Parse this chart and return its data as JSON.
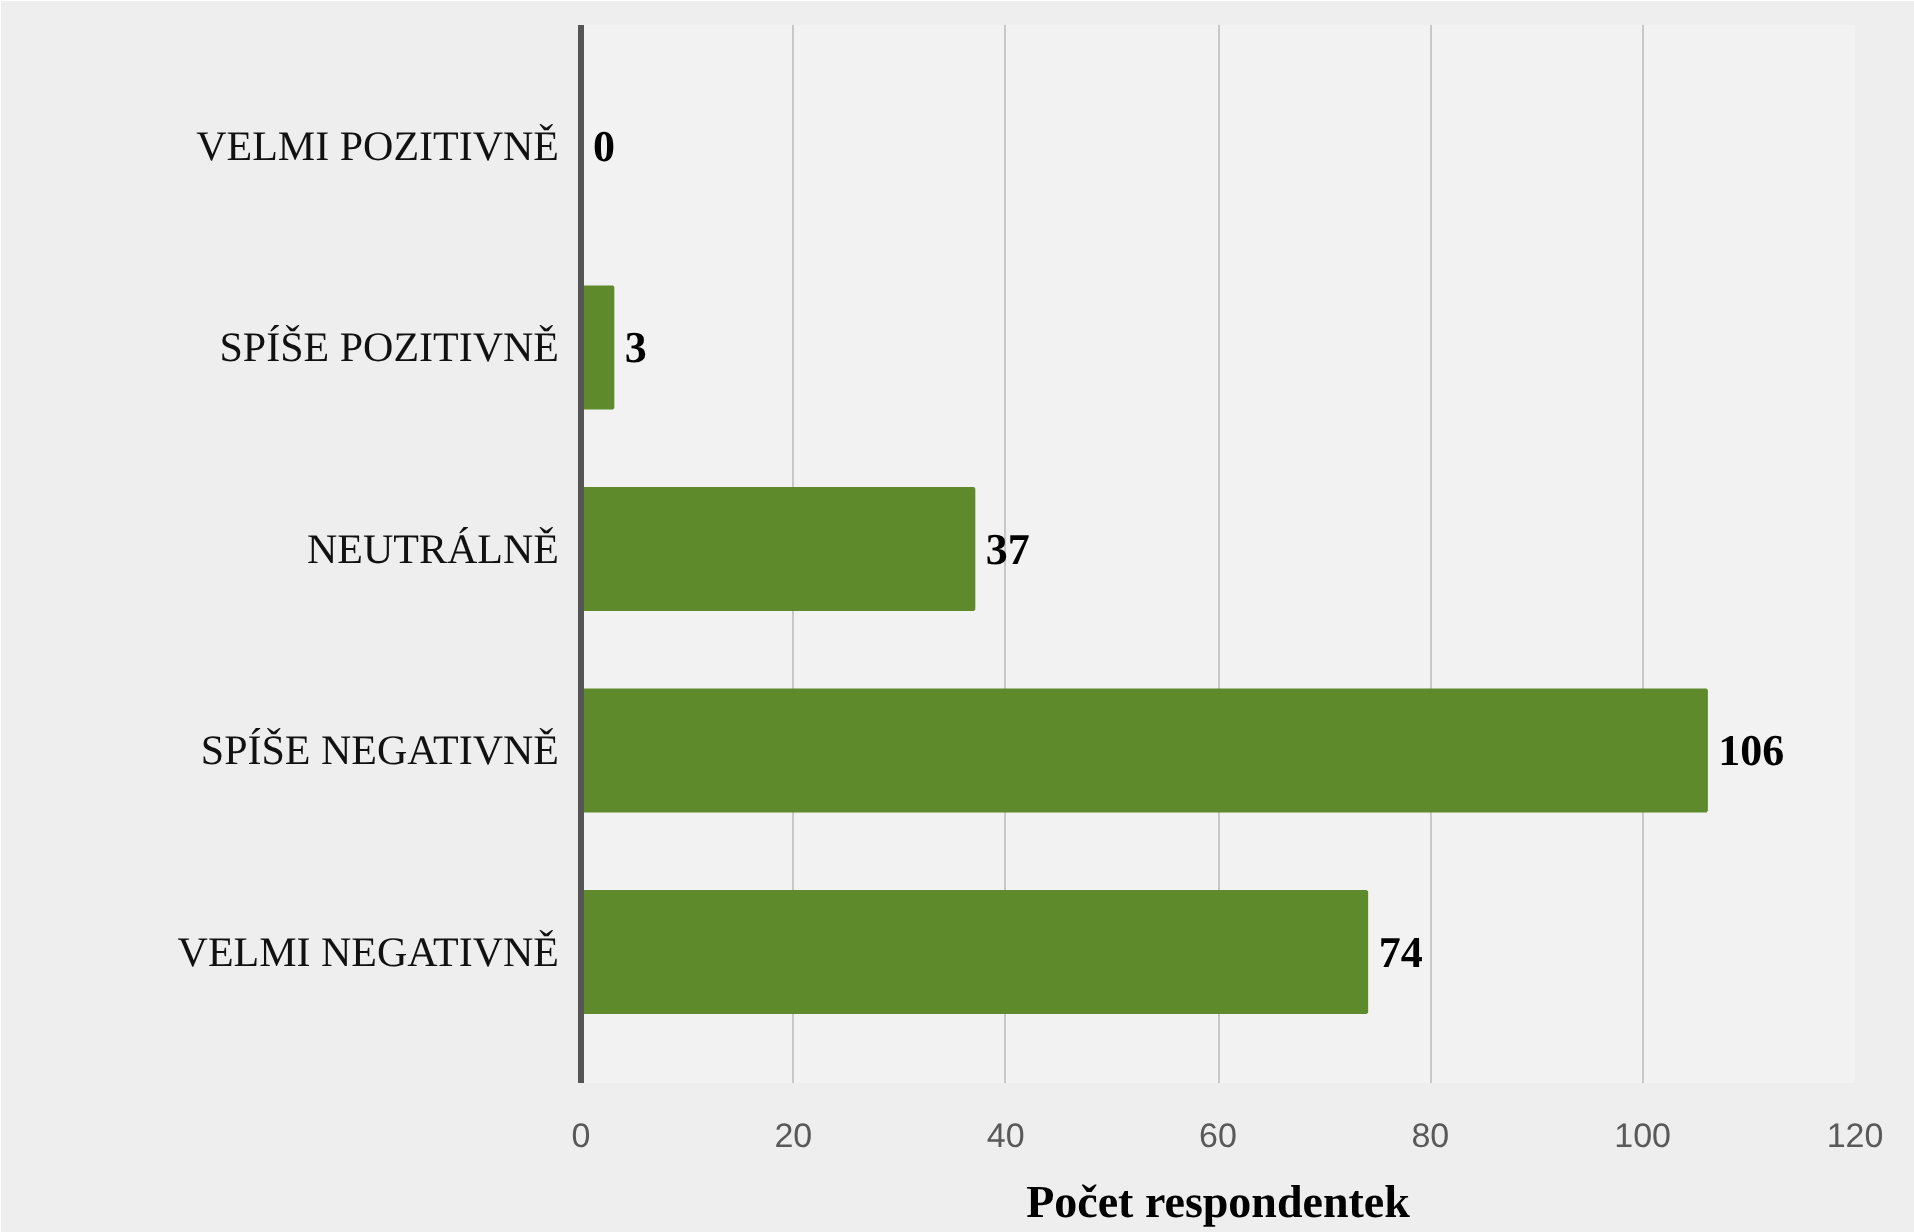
{
  "chart_data": {
    "type": "bar",
    "orientation": "horizontal",
    "xlabel": "Počet respondentek",
    "categories": [
      "VELMI POZITIVNĚ",
      "SPÍŠE POZITIVNĚ",
      "NEUTRÁLNĚ",
      "SPÍŠE NEGATIVNĚ",
      "VELMI NEGATIVNĚ"
    ],
    "values": [
      0,
      3,
      37,
      106,
      74
    ],
    "color": "#5e8a2c",
    "xlim": [
      0,
      120
    ],
    "xticks": [
      0,
      20,
      40,
      60,
      80,
      100,
      120
    ],
    "grid": "x",
    "data_labels": true
  }
}
